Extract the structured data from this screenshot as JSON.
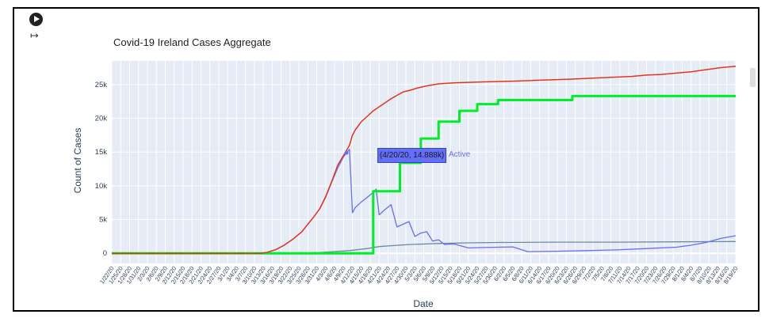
{
  "notebook": {
    "run_icon": "play-circle-icon",
    "output_icon": "output-exit-icon"
  },
  "chart_data": {
    "type": "line",
    "title": "Covid-19 Ireland Cases Aggregate",
    "xlabel": "Date",
    "ylabel": "Count of Cases",
    "ylim": [
      -1500,
      28500
    ],
    "yticks": [
      0,
      5000,
      10000,
      15000,
      20000,
      25000
    ],
    "ytick_labels": [
      "0",
      "5k",
      "10k",
      "15k",
      "20k",
      "25k"
    ],
    "xticks": [
      "1/22/20",
      "1/25/20",
      "1/28/20",
      "1/31/20",
      "2/3/20",
      "2/6/20",
      "2/9/20",
      "2/12/20",
      "2/15/20",
      "2/18/20",
      "2/21/20",
      "2/24/20",
      "2/27/20",
      "3/1/20",
      "3/4/20",
      "3/7/20",
      "3/10/20",
      "3/13/20",
      "3/16/20",
      "3/19/20",
      "3/22/20",
      "3/25/20",
      "3/28/20",
      "3/31/20",
      "4/3/20",
      "4/6/20",
      "4/9/20",
      "4/12/20",
      "4/15/20",
      "4/18/20",
      "4/21/20",
      "4/24/20",
      "4/27/20",
      "4/30/20",
      "5/3/20",
      "5/6/20",
      "5/9/20",
      "5/12/20",
      "5/15/20",
      "5/18/20",
      "5/21/20",
      "5/24/20",
      "5/27/20",
      "5/30/20",
      "6/2/20",
      "6/5/20",
      "6/8/20",
      "6/11/20",
      "6/14/20",
      "6/17/20",
      "6/20/20",
      "6/23/20",
      "6/26/20",
      "6/29/20",
      "7/2/20",
      "7/5/20",
      "7/8/20",
      "7/11/20",
      "7/14/20",
      "7/17/20",
      "7/20/20",
      "7/23/20",
      "7/26/20",
      "7/29/20",
      "8/1/20",
      "8/4/20",
      "8/7/20",
      "8/10/20",
      "8/13/20",
      "8/16/20",
      "8/19/20"
    ],
    "grid": true,
    "background": "#e5ecf6",
    "series": [
      {
        "color": "#e8331c",
        "x": [
          0,
          50,
          52,
          55,
          58,
          61,
          64,
          66,
          68,
          70,
          72,
          74,
          75,
          76,
          78,
          79,
          80,
          81,
          82,
          84,
          86,
          88,
          90,
          92,
          94,
          96,
          98,
          100,
          103,
          106,
          110,
          115,
          125,
          135,
          145,
          155,
          165,
          175,
          180,
          185,
          190,
          195,
          200,
          205,
          210
        ],
        "y": [
          0,
          0,
          100,
          500,
          1200,
          2100,
          3200,
          4300,
          5400,
          6600,
          8400,
          10600,
          11800,
          13000,
          14500,
          15250,
          16000,
          17500,
          18300,
          19500,
          20300,
          21100,
          21700,
          22300,
          22900,
          23400,
          23900,
          24100,
          24500,
          24800,
          25100,
          25250,
          25400,
          25500,
          25650,
          25800,
          26000,
          26200,
          26400,
          26500,
          26700,
          26900,
          27200,
          27500,
          27700
        ]
      },
      {
        "color": "#00ee2a",
        "x": [
          0,
          88,
          88,
          97,
          97,
          104,
          104,
          110,
          110,
          117,
          117,
          123,
          123,
          130,
          130,
          155,
          155,
          210
        ],
        "y": [
          0,
          0,
          9200,
          9200,
          13400,
          13400,
          17000,
          17000,
          19500,
          19500,
          21100,
          21100,
          22100,
          22100,
          22700,
          22700,
          23300,
          23300
        ]
      },
      {
        "name": "Active",
        "color": "#636efa",
        "x": [
          0,
          50,
          52,
          55,
          58,
          61,
          64,
          66,
          68,
          70,
          72,
          74,
          76,
          78,
          79,
          80,
          81,
          82,
          84,
          86,
          88,
          89,
          90,
          92,
          94,
          96,
          98,
          100,
          102,
          104,
          106,
          108,
          110,
          112,
          115,
          120,
          125,
          130,
          135,
          140,
          150,
          160,
          170,
          180,
          190,
          195,
          200,
          205,
          210
        ],
        "y": [
          0,
          0,
          100,
          500,
          1200,
          2100,
          3200,
          4300,
          5400,
          6600,
          8300,
          10500,
          12600,
          14300,
          14888,
          15400,
          6000,
          6800,
          7600,
          8300,
          9000,
          9500,
          5700,
          6500,
          7200,
          3900,
          4300,
          4700,
          2500,
          3000,
          3200,
          1800,
          2000,
          1300,
          1400,
          800,
          850,
          900,
          950,
          250,
          300,
          400,
          500,
          700,
          900,
          1200,
          1600,
          2200,
          2600
        ]
      },
      {
        "color": "#6f8a9e",
        "x": [
          0,
          60,
          70,
          80,
          86,
          90,
          95,
          100,
          110,
          120,
          130,
          150,
          170,
          190,
          210
        ],
        "y": [
          0,
          0,
          100,
          400,
          700,
          1000,
          1150,
          1300,
          1450,
          1550,
          1600,
          1650,
          1650,
          1700,
          1750
        ]
      }
    ],
    "hover": {
      "label": "(4/20/20, 14.888k)",
      "series": "Active",
      "x": 79,
      "y": 14888
    }
  }
}
